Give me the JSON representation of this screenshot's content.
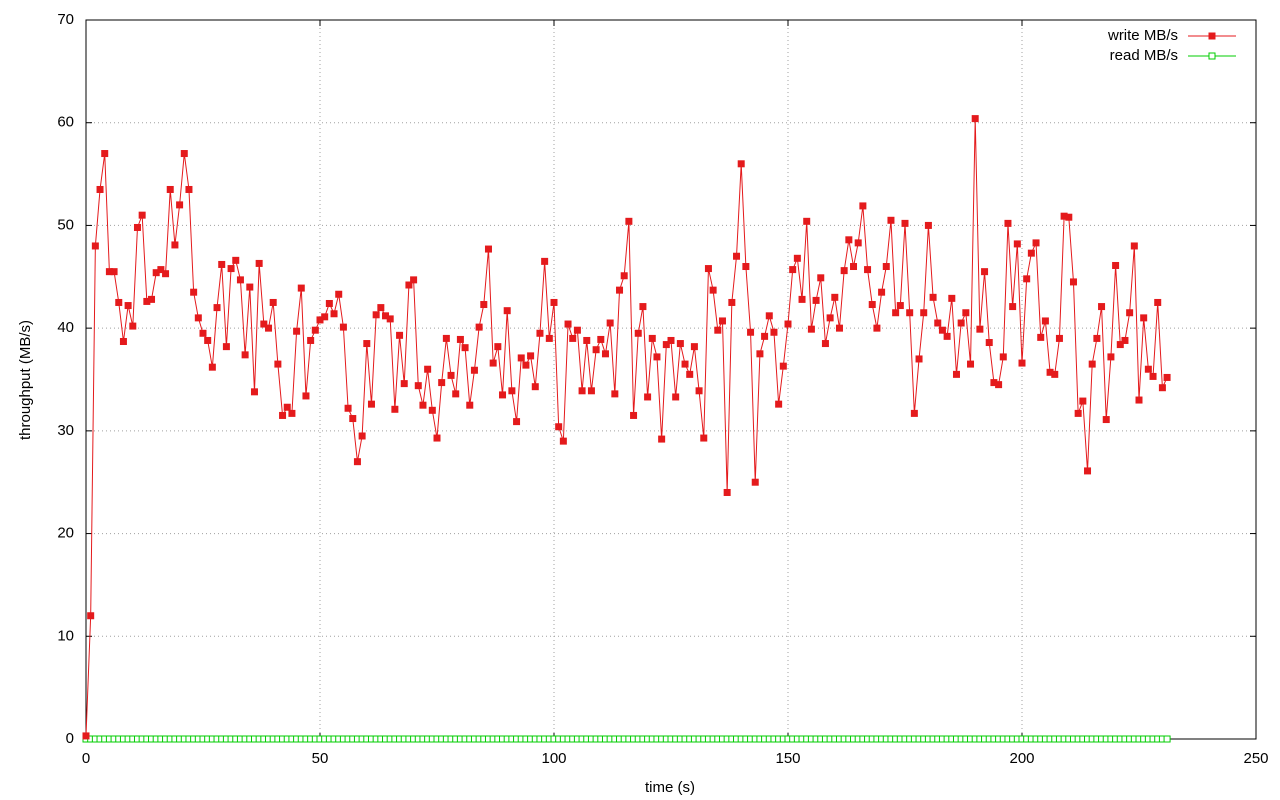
{
  "chart_data": {
    "type": "line",
    "xlabel": "time (s)",
    "ylabel": "throughput (MB/s)",
    "x": [
      0,
      1,
      2,
      3,
      4,
      5,
      6,
      7,
      8,
      9,
      10,
      11,
      12,
      13,
      14,
      15,
      16,
      17,
      18,
      19,
      20,
      21,
      22,
      23,
      24,
      25,
      26,
      27,
      28,
      29,
      30,
      31,
      32,
      33,
      34,
      35,
      36,
      37,
      38,
      39,
      40,
      41,
      42,
      43,
      44,
      45,
      46,
      47,
      48,
      49,
      50,
      51,
      52,
      53,
      54,
      55,
      56,
      57,
      58,
      59,
      60,
      61,
      62,
      63,
      64,
      65,
      66,
      67,
      68,
      69,
      70,
      71,
      72,
      73,
      74,
      75,
      76,
      77,
      78,
      79,
      80,
      81,
      82,
      83,
      84,
      85,
      86,
      87,
      88,
      89,
      90,
      91,
      92,
      93,
      94,
      95,
      96,
      97,
      98,
      99,
      100,
      101,
      102,
      103,
      104,
      105,
      106,
      107,
      108,
      109,
      110,
      111,
      112,
      113,
      114,
      115,
      116,
      117,
      118,
      119,
      120,
      121,
      122,
      123,
      124,
      125,
      126,
      127,
      128,
      129,
      130,
      131,
      132,
      133,
      134,
      135,
      136,
      137,
      138,
      139,
      140,
      141,
      142,
      143,
      144,
      145,
      146,
      147,
      148,
      149,
      150,
      151,
      152,
      153,
      154,
      155,
      156,
      157,
      158,
      159,
      160,
      161,
      162,
      163,
      164,
      165,
      166,
      167,
      168,
      169,
      170,
      171,
      172,
      173,
      174,
      175,
      176,
      177,
      178,
      179,
      180,
      181,
      182,
      183,
      184,
      185,
      186,
      187,
      188,
      189,
      190,
      191,
      192,
      193,
      194,
      195,
      196,
      197,
      198,
      199,
      200,
      201,
      202,
      203,
      204,
      205,
      206,
      207,
      208,
      209,
      210,
      211,
      212,
      213,
      214,
      215,
      216,
      217,
      218,
      219,
      220,
      221,
      222,
      223,
      224,
      225,
      226,
      227,
      228,
      229,
      230,
      231
    ],
    "series": [
      {
        "name": "write MB/s",
        "color": "#e41a1c",
        "marker": "filled-square",
        "values": [
          0.3,
          12,
          48,
          53.5,
          57,
          45.5,
          45.5,
          42.5,
          38.7,
          42.2,
          40.2,
          49.8,
          51,
          42.6,
          42.8,
          45.4,
          45.7,
          45.3,
          53.5,
          48.1,
          52,
          57,
          53.5,
          43.5,
          41,
          39.5,
          38.8,
          36.2,
          42,
          46.2,
          38.2,
          45.8,
          46.6,
          44.7,
          37.4,
          44,
          33.8,
          46.3,
          40.4,
          40,
          42.5,
          36.5,
          31.5,
          32.3,
          31.7,
          39.7,
          43.9,
          33.4,
          38.8,
          39.8,
          40.8,
          41.1,
          42.4,
          41.4,
          43.3,
          40.1,
          32.2,
          31.2,
          27,
          29.5,
          38.5,
          32.6,
          41.3,
          42,
          41.2,
          40.9,
          32.1,
          39.3,
          34.6,
          44.2,
          44.7,
          34.4,
          32.5,
          36,
          32,
          29.3,
          34.7,
          39,
          35.4,
          33.6,
          38.9,
          38.1,
          32.5,
          35.9,
          40.1,
          42.3,
          47.7,
          36.6,
          38.2,
          33.5,
          41.7,
          33.9,
          30.9,
          37.1,
          36.4,
          37.3,
          34.3,
          39.5,
          46.5,
          39,
          42.5,
          30.4,
          29,
          40.4,
          39,
          39.8,
          33.9,
          38.8,
          33.9,
          37.9,
          38.9,
          37.5,
          40.5,
          33.6,
          43.7,
          45.1,
          50.4,
          31.5,
          39.5,
          42.1,
          33.3,
          39,
          37.2,
          29.2,
          38.4,
          38.8,
          33.3,
          38.5,
          36.5,
          35.5,
          38.2,
          33.9,
          29.3,
          45.8,
          43.7,
          39.8,
          40.7,
          24,
          42.5,
          47,
          56,
          46,
          39.6,
          25,
          37.5,
          39.2,
          41.2,
          39.6,
          32.6,
          36.3,
          40.4,
          45.7,
          46.8,
          42.8,
          50.4,
          39.9,
          42.7,
          44.9,
          38.5,
          41,
          43,
          40,
          45.6,
          48.6,
          46,
          48.3,
          51.9,
          45.7,
          42.3,
          40,
          43.5,
          46,
          50.5,
          41.5,
          42.2,
          50.2,
          41.5,
          31.7,
          37,
          41.5,
          50,
          43,
          40.5,
          39.8,
          39.2,
          42.9,
          35.5,
          40.5,
          41.5,
          36.5,
          60.4,
          39.9,
          45.5,
          38.6,
          34.7,
          34.5,
          37.2,
          50.2,
          42.1,
          48.2,
          36.6,
          44.8,
          47.3,
          48.3,
          39.1,
          40.7,
          35.7,
          35.5,
          39,
          50.9,
          50.8,
          44.5,
          31.7,
          32.9,
          26.1,
          36.5,
          39,
          42.1,
          31.1,
          37.2,
          46.1,
          38.4,
          38.8,
          41.5,
          48,
          33,
          41,
          36,
          35.3,
          42.5,
          34.2,
          35.2
        ]
      },
      {
        "name": "read MB/s",
        "color": "#00cc00",
        "marker": "open-square",
        "values": [
          0,
          0,
          0,
          0,
          0,
          0,
          0,
          0,
          0,
          0,
          0,
          0,
          0,
          0,
          0,
          0,
          0,
          0,
          0,
          0,
          0,
          0,
          0,
          0,
          0,
          0,
          0,
          0,
          0,
          0,
          0,
          0,
          0,
          0,
          0,
          0,
          0,
          0,
          0,
          0,
          0,
          0,
          0,
          0,
          0,
          0,
          0,
          0,
          0,
          0,
          0,
          0,
          0,
          0,
          0,
          0,
          0,
          0,
          0,
          0,
          0,
          0,
          0,
          0,
          0,
          0,
          0,
          0,
          0,
          0,
          0,
          0,
          0,
          0,
          0,
          0,
          0,
          0,
          0,
          0,
          0,
          0,
          0,
          0,
          0,
          0,
          0,
          0,
          0,
          0,
          0,
          0,
          0,
          0,
          0,
          0,
          0,
          0,
          0,
          0,
          0,
          0,
          0,
          0,
          0,
          0,
          0,
          0,
          0,
          0,
          0,
          0,
          0,
          0,
          0,
          0,
          0,
          0,
          0,
          0,
          0,
          0,
          0,
          0,
          0,
          0,
          0,
          0,
          0,
          0,
          0,
          0,
          0,
          0,
          0,
          0,
          0,
          0,
          0,
          0,
          0,
          0,
          0,
          0,
          0,
          0,
          0,
          0,
          0,
          0,
          0,
          0,
          0,
          0,
          0,
          0,
          0,
          0,
          0,
          0,
          0,
          0,
          0,
          0,
          0,
          0,
          0,
          0,
          0,
          0,
          0,
          0,
          0,
          0,
          0,
          0,
          0,
          0,
          0,
          0,
          0,
          0,
          0,
          0,
          0,
          0,
          0,
          0,
          0,
          0,
          0,
          0,
          0,
          0,
          0,
          0,
          0,
          0,
          0,
          0,
          0,
          0,
          0,
          0,
          0,
          0,
          0,
          0,
          0,
          0,
          0,
          0,
          0,
          0,
          0,
          0,
          0,
          0,
          0,
          0,
          0,
          0,
          0,
          0,
          0,
          0,
          0,
          0,
          0,
          0,
          0,
          0
        ]
      }
    ],
    "xlim": [
      0,
      250
    ],
    "xticks": [
      0,
      50,
      100,
      150,
      200,
      250
    ],
    "ylim": [
      0,
      70
    ],
    "yticks": [
      0,
      10,
      20,
      30,
      40,
      50,
      60,
      70
    ],
    "grid": true,
    "legend": "top-right"
  }
}
